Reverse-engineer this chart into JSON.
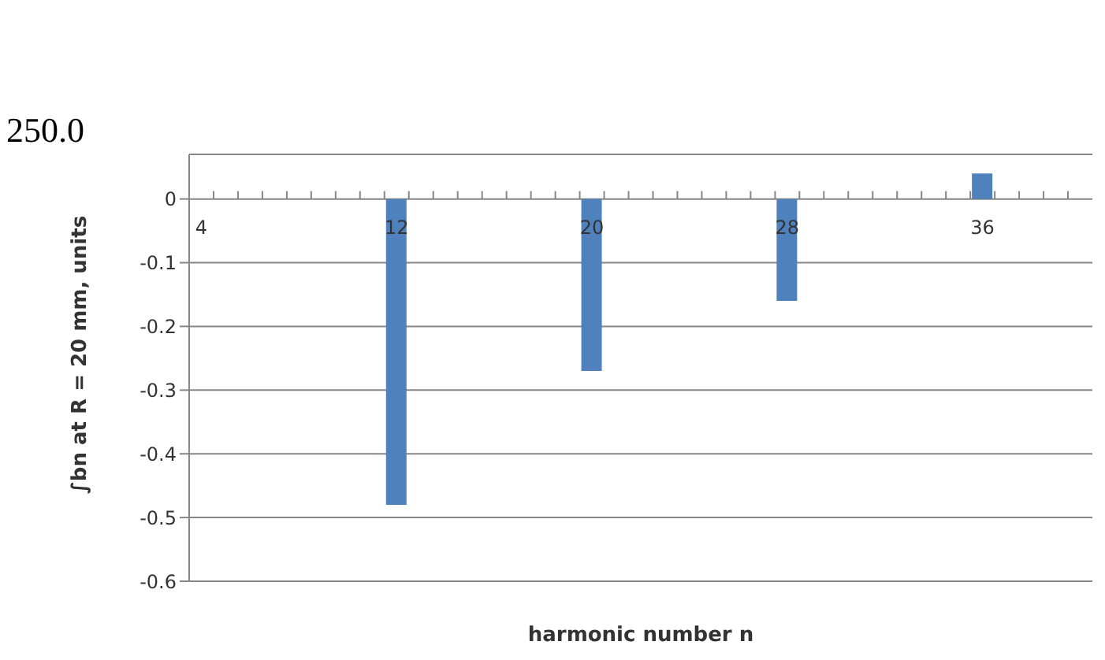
{
  "chart_data": {
    "type": "bar",
    "xlabel": "harmonic number n",
    "ylabel": "∫bn at R = 20 mm, units",
    "categories": [
      "4",
      null,
      null,
      null,
      null,
      null,
      null,
      null,
      "12",
      null,
      null,
      null,
      null,
      null,
      null,
      null,
      "20",
      null,
      null,
      null,
      null,
      null,
      null,
      null,
      "28",
      null,
      null,
      null,
      null,
      null,
      null,
      null,
      "36",
      null,
      null,
      null,
      null
    ],
    "values": [
      null,
      null,
      null,
      null,
      null,
      null,
      null,
      null,
      -0.48,
      null,
      null,
      null,
      null,
      null,
      null,
      null,
      -0.27,
      null,
      null,
      null,
      null,
      null,
      null,
      null,
      -0.16,
      null,
      null,
      null,
      null,
      null,
      null,
      null,
      0.04,
      null,
      null,
      null,
      null
    ],
    "color": "#4f81bd",
    "ylim": [
      -0.6,
      0.07
    ],
    "yticks": [
      -0.6,
      -0.5,
      -0.4,
      -0.3,
      -0.2,
      -0.1,
      0
    ],
    "grid": "y",
    "annotations": [
      "250.0"
    ]
  }
}
